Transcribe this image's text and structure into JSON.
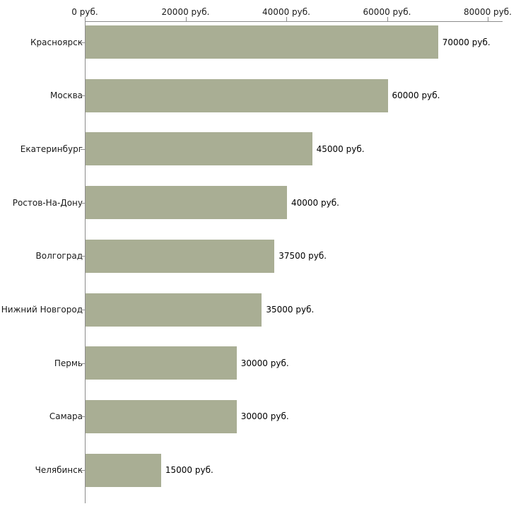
{
  "chart_data": {
    "type": "bar",
    "orientation": "horizontal",
    "title": "",
    "xlabel": "",
    "ylabel": "",
    "grid": false,
    "legend": "none",
    "xlim": [
      0,
      80000
    ],
    "x_ticks": [
      0,
      20000,
      40000,
      60000,
      80000
    ],
    "x_tick_labels": [
      "0 руб.",
      "20000 руб.",
      "40000 руб.",
      "60000 руб.",
      "80000 руб."
    ],
    "categories": [
      "Красноярск",
      "Москва",
      "Екатеринбург",
      "Ростов-На-Дону",
      "Волгоград",
      "Нижний Новгород",
      "Пермь",
      "Самара",
      "Челябинск"
    ],
    "values": [
      70000,
      60000,
      45000,
      40000,
      37500,
      35000,
      30000,
      30000,
      15000
    ],
    "value_labels": [
      "70000 руб.",
      "60000 руб.",
      "45000 руб.",
      "40000 руб.",
      "37500 руб.",
      "35000 руб.",
      "30000 руб.",
      "30000 руб.",
      "15000 руб."
    ],
    "bar_color": "#a9ae94",
    "axis_color": "#8c8c8c",
    "text_color": "#1a1a1a",
    "background_color": "#ffffff"
  }
}
